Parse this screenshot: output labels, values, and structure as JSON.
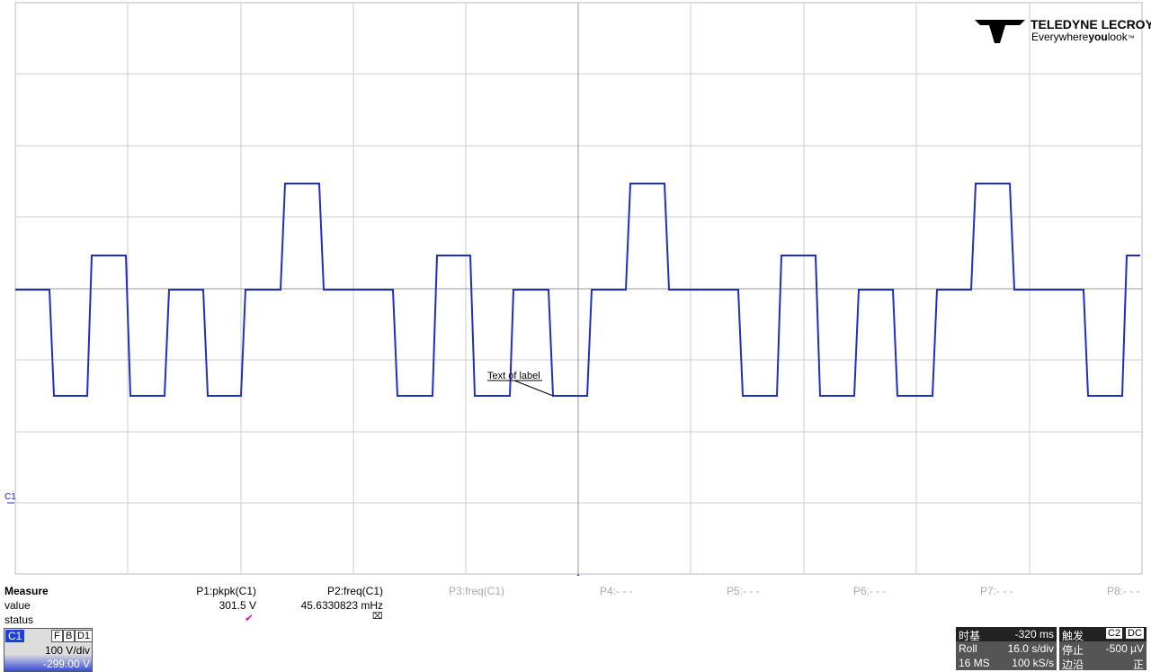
{
  "logo": {
    "brand": "TELEDYNE LECROY",
    "tagline_1": "Everywhere",
    "tagline_2": "you",
    "tagline_3": "look",
    "tm": "™"
  },
  "annotation": "Text of label",
  "channel_marker": "C1",
  "measure": {
    "headers": [
      "Measure",
      "P1:pkpk(C1)",
      "P2:freq(C1)",
      "P3:freq(C1)",
      "P4:- - -",
      "P5:- - -",
      "P6:- - -",
      "P7:- - -",
      "P8:- - -"
    ],
    "value": [
      "value",
      "301.5 V",
      "45.6330823 mHz"
    ],
    "status": [
      "status"
    ]
  },
  "channel": {
    "name": "C1",
    "flags": [
      "F",
      "B",
      "D1"
    ],
    "scale": "100 V/div",
    "offset": "-299.00 V"
  },
  "timebase": {
    "title": "时基",
    "delay": "-320 ms",
    "mode": "Roll",
    "per_div": "16.0 s/div",
    "samples": "16 MS",
    "rate": "100 kS/s"
  },
  "trigger": {
    "title": "触发",
    "source": "C2",
    "coupling": "DC",
    "state": "停止",
    "level": "-500 µV",
    "type": "边沿",
    "slope": "正"
  }
}
